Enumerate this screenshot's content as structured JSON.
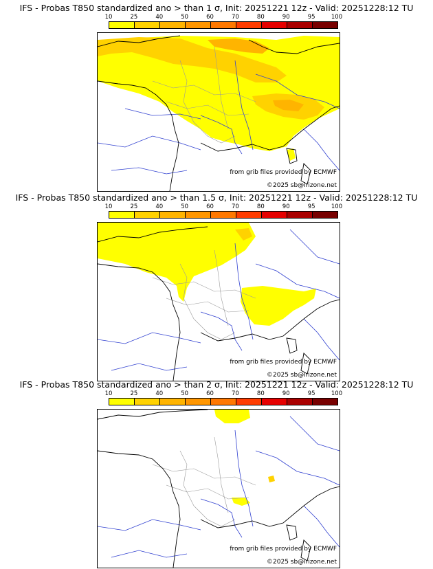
{
  "scale": {
    "ticks": [
      "10",
      "25",
      "40",
      "50",
      "60",
      "70",
      "80",
      "90",
      "95",
      "100"
    ],
    "colors": [
      "#ffff00",
      "#ffd200",
      "#ffb400",
      "#ff9600",
      "#ff7800",
      "#ff3c00",
      "#e60000",
      "#aa0000",
      "#780000"
    ]
  },
  "panels": [
    {
      "title": "IFS - Probas T850  standardized ano > than 1 σ, Init: 20251221 12z - Valid: 20251228:12 TU",
      "credit_grib": "from grib files provided by ECMWF",
      "credit_site": "©2025 sb@irizone.net"
    },
    {
      "title": "IFS - Probas T850  standardized ano > than 1.5 σ, Init: 20251221 12z - Valid: 20251228:12 TU",
      "credit_grib": "from grib files provided by ECMWF",
      "credit_site": "©2025 sb@irizone.net"
    },
    {
      "title": "IFS - Probas T850  standardized ano > than 2 σ, Init: 20251221 12z - Valid: 20251228:12 TU",
      "credit_grib": "from grib files provided by ECMWF",
      "credit_site": "©2025 sb@irizone.net"
    }
  ]
}
